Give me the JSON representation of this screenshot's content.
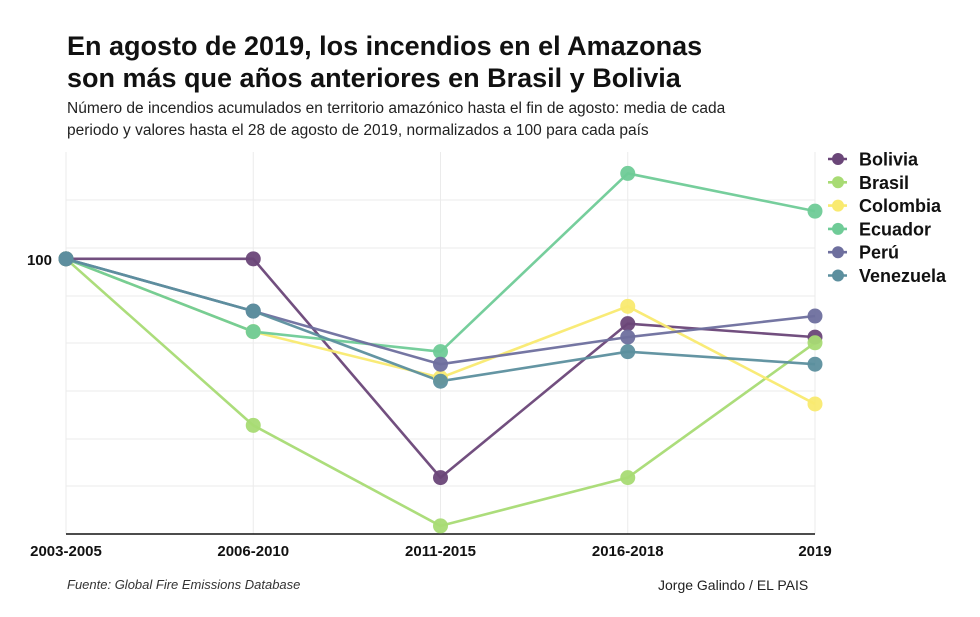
{
  "title_lines": [
    "En agosto de 2019, los incendios en el Amazonas",
    "son más que años anteriores en Brasil y Bolivia"
  ],
  "subtitle_lines": [
    "Número de incendios acumulados en territorio amazónico hasta el fin de agosto: media de cada",
    "periodo y valores hasta el 28 de agosto de 2019, normalizados a 100 para cada país"
  ],
  "source": "Fuente: Global Fire Emissions Database",
  "credit": "Jorge Galindo / EL PAIS",
  "chart_data": {
    "type": "line",
    "title": "En agosto de 2019, los incendios en el Amazonas son más que años anteriores en Brasil y Bolivia",
    "xlabel": "",
    "ylabel": "",
    "categories": [
      "2003-2005",
      "2006-2010",
      "2011-2015",
      "2016-2018",
      "2019"
    ],
    "yscale": "log",
    "ylim": [
      22,
      180
    ],
    "yticks": [
      100
    ],
    "ytick_labels": [
      "100"
    ],
    "grid": true,
    "legend_position": "right",
    "series": [
      {
        "name": "Bolivia",
        "color": "#6a4678",
        "values": [
          100,
          100,
          30,
          70,
          65
        ]
      },
      {
        "name": "Brasil",
        "color": "#a8db74",
        "values": [
          100,
          40,
          23,
          30,
          63
        ]
      },
      {
        "name": "Colombia",
        "color": "#f9ea70",
        "values": [
          100,
          67,
          52,
          77,
          45
        ]
      },
      {
        "name": "Ecuador",
        "color": "#6fcb97",
        "values": [
          100,
          67,
          60,
          160,
          130
        ]
      },
      {
        "name": "Perú",
        "color": "#6e6f9e",
        "values": [
          100,
          75,
          56,
          65,
          73
        ]
      },
      {
        "name": "Venezuela",
        "color": "#5c8f9e",
        "values": [
          100,
          75,
          51,
          60,
          56
        ]
      }
    ]
  }
}
